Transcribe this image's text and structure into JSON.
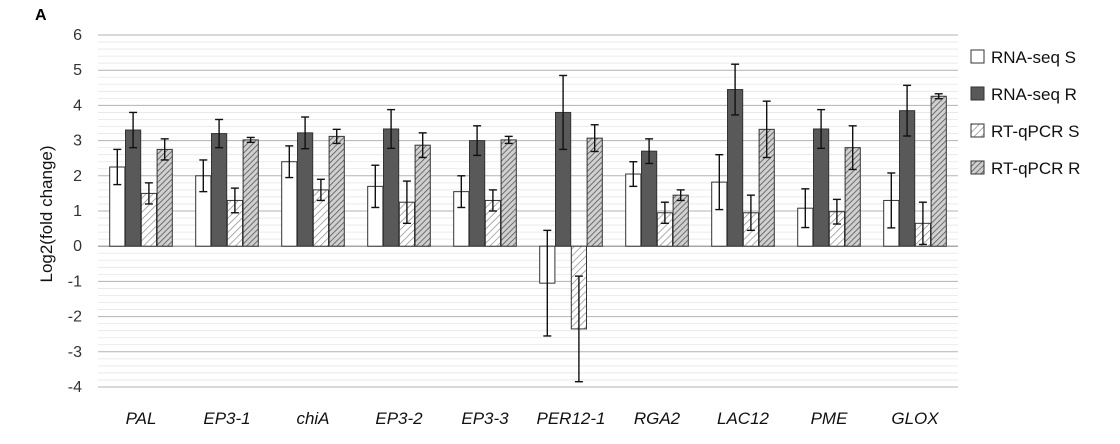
{
  "panel_label": "A",
  "chart_data": {
    "type": "bar",
    "title": "",
    "xlabel": "",
    "ylabel": "Log2(fold change)",
    "ylim": [
      -4,
      6
    ],
    "yticks": [
      6,
      5,
      4,
      3,
      2,
      1,
      0,
      -1,
      -2,
      -3,
      -4
    ],
    "grid": true,
    "legend_position": "right",
    "categories": [
      "PAL",
      "EP3-1",
      "chiA",
      "EP3-2",
      "EP3-3",
      "PER12-1",
      "RGA2",
      "LAC12",
      "PME",
      "GLOX"
    ],
    "series": [
      {
        "name": "RNA-seq S",
        "fill": "#ffffff",
        "pattern": "solid",
        "values": [
          2.25,
          2.0,
          2.4,
          1.7,
          1.55,
          -1.05,
          2.05,
          1.82,
          1.08,
          1.3
        ],
        "errors": [
          0.5,
          0.45,
          0.45,
          0.6,
          0.45,
          1.5,
          0.35,
          0.78,
          0.55,
          0.78
        ]
      },
      {
        "name": "RNA-seq R",
        "fill": "#595959",
        "pattern": "solid",
        "values": [
          3.3,
          3.2,
          3.22,
          3.33,
          3.0,
          3.8,
          2.7,
          4.45,
          3.33,
          3.85
        ],
        "errors": [
          0.5,
          0.4,
          0.45,
          0.55,
          0.42,
          1.05,
          0.35,
          0.72,
          0.55,
          0.72
        ]
      },
      {
        "name": "RT-qPCR S",
        "fill": "#ffffff",
        "pattern": "light-diagonal",
        "values": [
          1.5,
          1.3,
          1.6,
          1.25,
          1.3,
          -2.35,
          0.95,
          0.95,
          0.98,
          0.65
        ],
        "errors": [
          0.3,
          0.35,
          0.3,
          0.6,
          0.3,
          1.5,
          0.3,
          0.5,
          0.35,
          0.6
        ]
      },
      {
        "name": "RT-qPCR R",
        "fill": "#bfbfbf",
        "pattern": "dark-diagonal",
        "values": [
          2.75,
          3.02,
          3.12,
          2.87,
          3.02,
          3.07,
          1.45,
          3.32,
          2.8,
          4.26
        ],
        "errors": [
          0.3,
          0.07,
          0.2,
          0.35,
          0.1,
          0.38,
          0.15,
          0.8,
          0.62,
          0.07
        ]
      }
    ]
  }
}
